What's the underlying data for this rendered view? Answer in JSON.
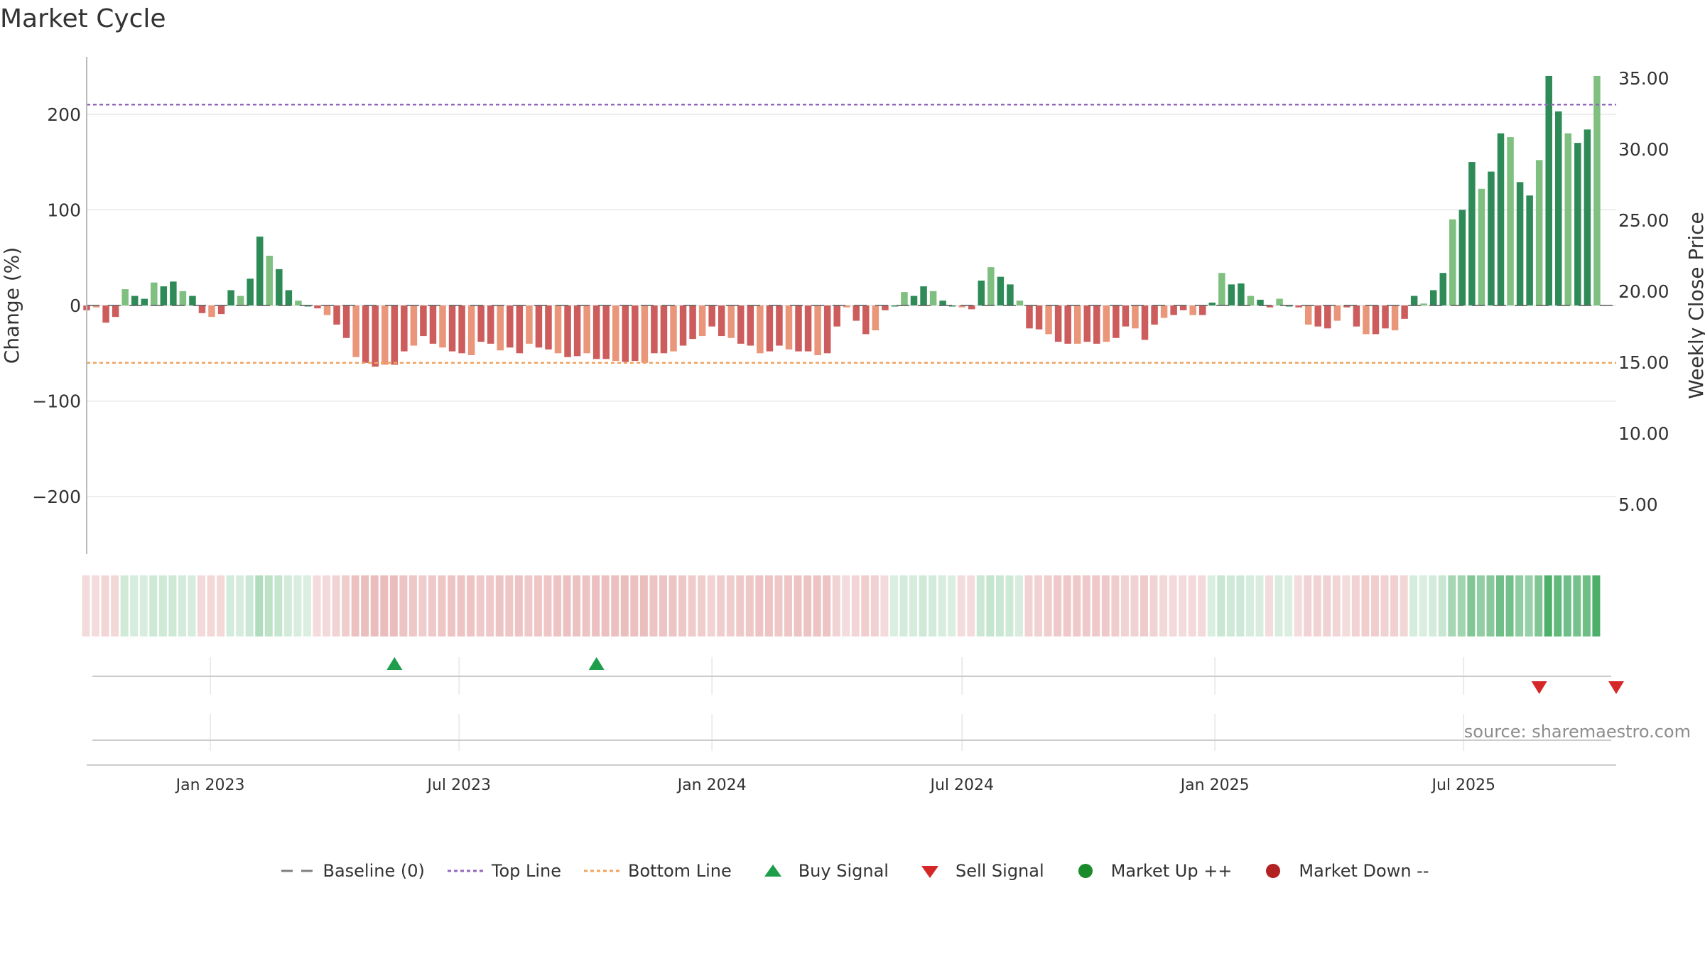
{
  "chart_data": {
    "type": "bar",
    "title": "Market Cycle",
    "ylabel_left": "Change (%)",
    "ylabel_right": "Weekly Close Price",
    "ylim_left": [
      -260,
      260
    ],
    "ylim_right": [
      1.5,
      36.5
    ],
    "y_ticks_left": [
      {
        "value": 200,
        "label": "200"
      },
      {
        "value": 100,
        "label": "100"
      },
      {
        "value": 0,
        "label": "0"
      },
      {
        "value": -100,
        "label": "−100"
      },
      {
        "value": -200,
        "label": "−200"
      }
    ],
    "y_ticks_right": [
      {
        "value": 35,
        "label": "35.00"
      },
      {
        "value": 30,
        "label": "30.00"
      },
      {
        "value": 25,
        "label": "25.00"
      },
      {
        "value": 20,
        "label": "20.00"
      },
      {
        "value": 15,
        "label": "15.00"
      },
      {
        "value": 10,
        "label": "10.00"
      },
      {
        "value": 5,
        "label": "5.00"
      }
    ],
    "x_range": [
      "2022-10-03",
      "2025-10-20"
    ],
    "x_ticks": [
      {
        "date": "2023-01-01",
        "label": "Jan 2023"
      },
      {
        "date": "2023-07-01",
        "label": "Jul 2023"
      },
      {
        "date": "2024-01-01",
        "label": "Jan 2024"
      },
      {
        "date": "2024-07-01",
        "label": "Jul 2024"
      },
      {
        "date": "2025-01-01",
        "label": "Jan 2025"
      },
      {
        "date": "2025-07-01",
        "label": "Jul 2025"
      }
    ],
    "first_week": "2022-10-03",
    "top_line": 210,
    "bottom_line": -60,
    "baseline": 0,
    "values": [
      -5,
      -2,
      -18,
      -12,
      17,
      10,
      7,
      24,
      20,
      25,
      15,
      10,
      -8,
      -12,
      -9,
      16,
      10,
      28,
      72,
      52,
      38,
      16,
      5,
      0,
      -3,
      -10,
      -20,
      -34,
      -54,
      -60,
      -64,
      -62,
      -62,
      -48,
      -42,
      -32,
      -40,
      -44,
      -48,
      -50,
      -52,
      -38,
      -40,
      -47,
      -44,
      -50,
      -40,
      -44,
      -46,
      -50,
      -54,
      -53,
      -50,
      -56,
      -56,
      -58,
      -59,
      -58,
      -60,
      -50,
      -50,
      -48,
      -42,
      -35,
      -32,
      -22,
      -32,
      -34,
      -40,
      -42,
      -50,
      -48,
      -42,
      -46,
      -48,
      -48,
      -52,
      -50,
      -22,
      -2,
      -16,
      -30,
      -26,
      -5,
      0,
      14,
      10,
      20,
      15,
      5,
      0,
      -2,
      -4,
      26,
      40,
      30,
      22,
      5,
      -24,
      -25,
      -30,
      -38,
      -40,
      -40,
      -38,
      -40,
      -38,
      -34,
      -22,
      -24,
      -36,
      -20,
      -13,
      -10,
      -5,
      -10,
      -10,
      3,
      34,
      22,
      23,
      10,
      6,
      -2,
      7,
      0,
      -2,
      -20,
      -22,
      -24,
      -16,
      -2,
      -22,
      -30,
      -30,
      -24,
      -26,
      -14,
      10,
      2,
      16,
      34,
      90,
      100,
      150,
      122,
      140,
      180,
      176,
      129,
      115,
      152,
      240,
      203,
      180,
      170,
      184,
      240
    ],
    "buy_signals": [
      "2023-05-15",
      "2023-10-09"
    ],
    "sell_signals": [
      "2025-08-25",
      "2025-10-20"
    ],
    "annotation": "source: sharemaestro.com",
    "legend": [
      {
        "label": "Baseline (0)",
        "symbol": "dash",
        "color": "#7f7f7f"
      },
      {
        "label": "Top Line",
        "symbol": "dotted",
        "color": "#9467bd"
      },
      {
        "label": "Bottom Line",
        "symbol": "dotted",
        "color": "#f0a35e"
      },
      {
        "label": "Buy Signal",
        "symbol": "triangle-up",
        "color": "#1e9e4a"
      },
      {
        "label": "Sell Signal",
        "symbol": "triangle-down",
        "color": "#d62728"
      },
      {
        "label": "Market Up ++",
        "symbol": "circle",
        "color": "#1a8a2a"
      },
      {
        "label": "Market Down --",
        "symbol": "circle",
        "color": "#b22222"
      }
    ],
    "colors": {
      "positive_strong": "#2e8b57",
      "positive_light": "#7fbf7f",
      "negative_strong": "#cd5c5c",
      "negative_light": "#e9967a",
      "top_line": "#9467bd",
      "bottom_line": "#f0a35e",
      "buy": "#1e9e4a",
      "sell": "#d62728",
      "strip_positive": "#4caf6a",
      "strip_negative": "#cd5c5c",
      "grid": "#e6e6e6",
      "axis": "#bbbbbb"
    }
  }
}
